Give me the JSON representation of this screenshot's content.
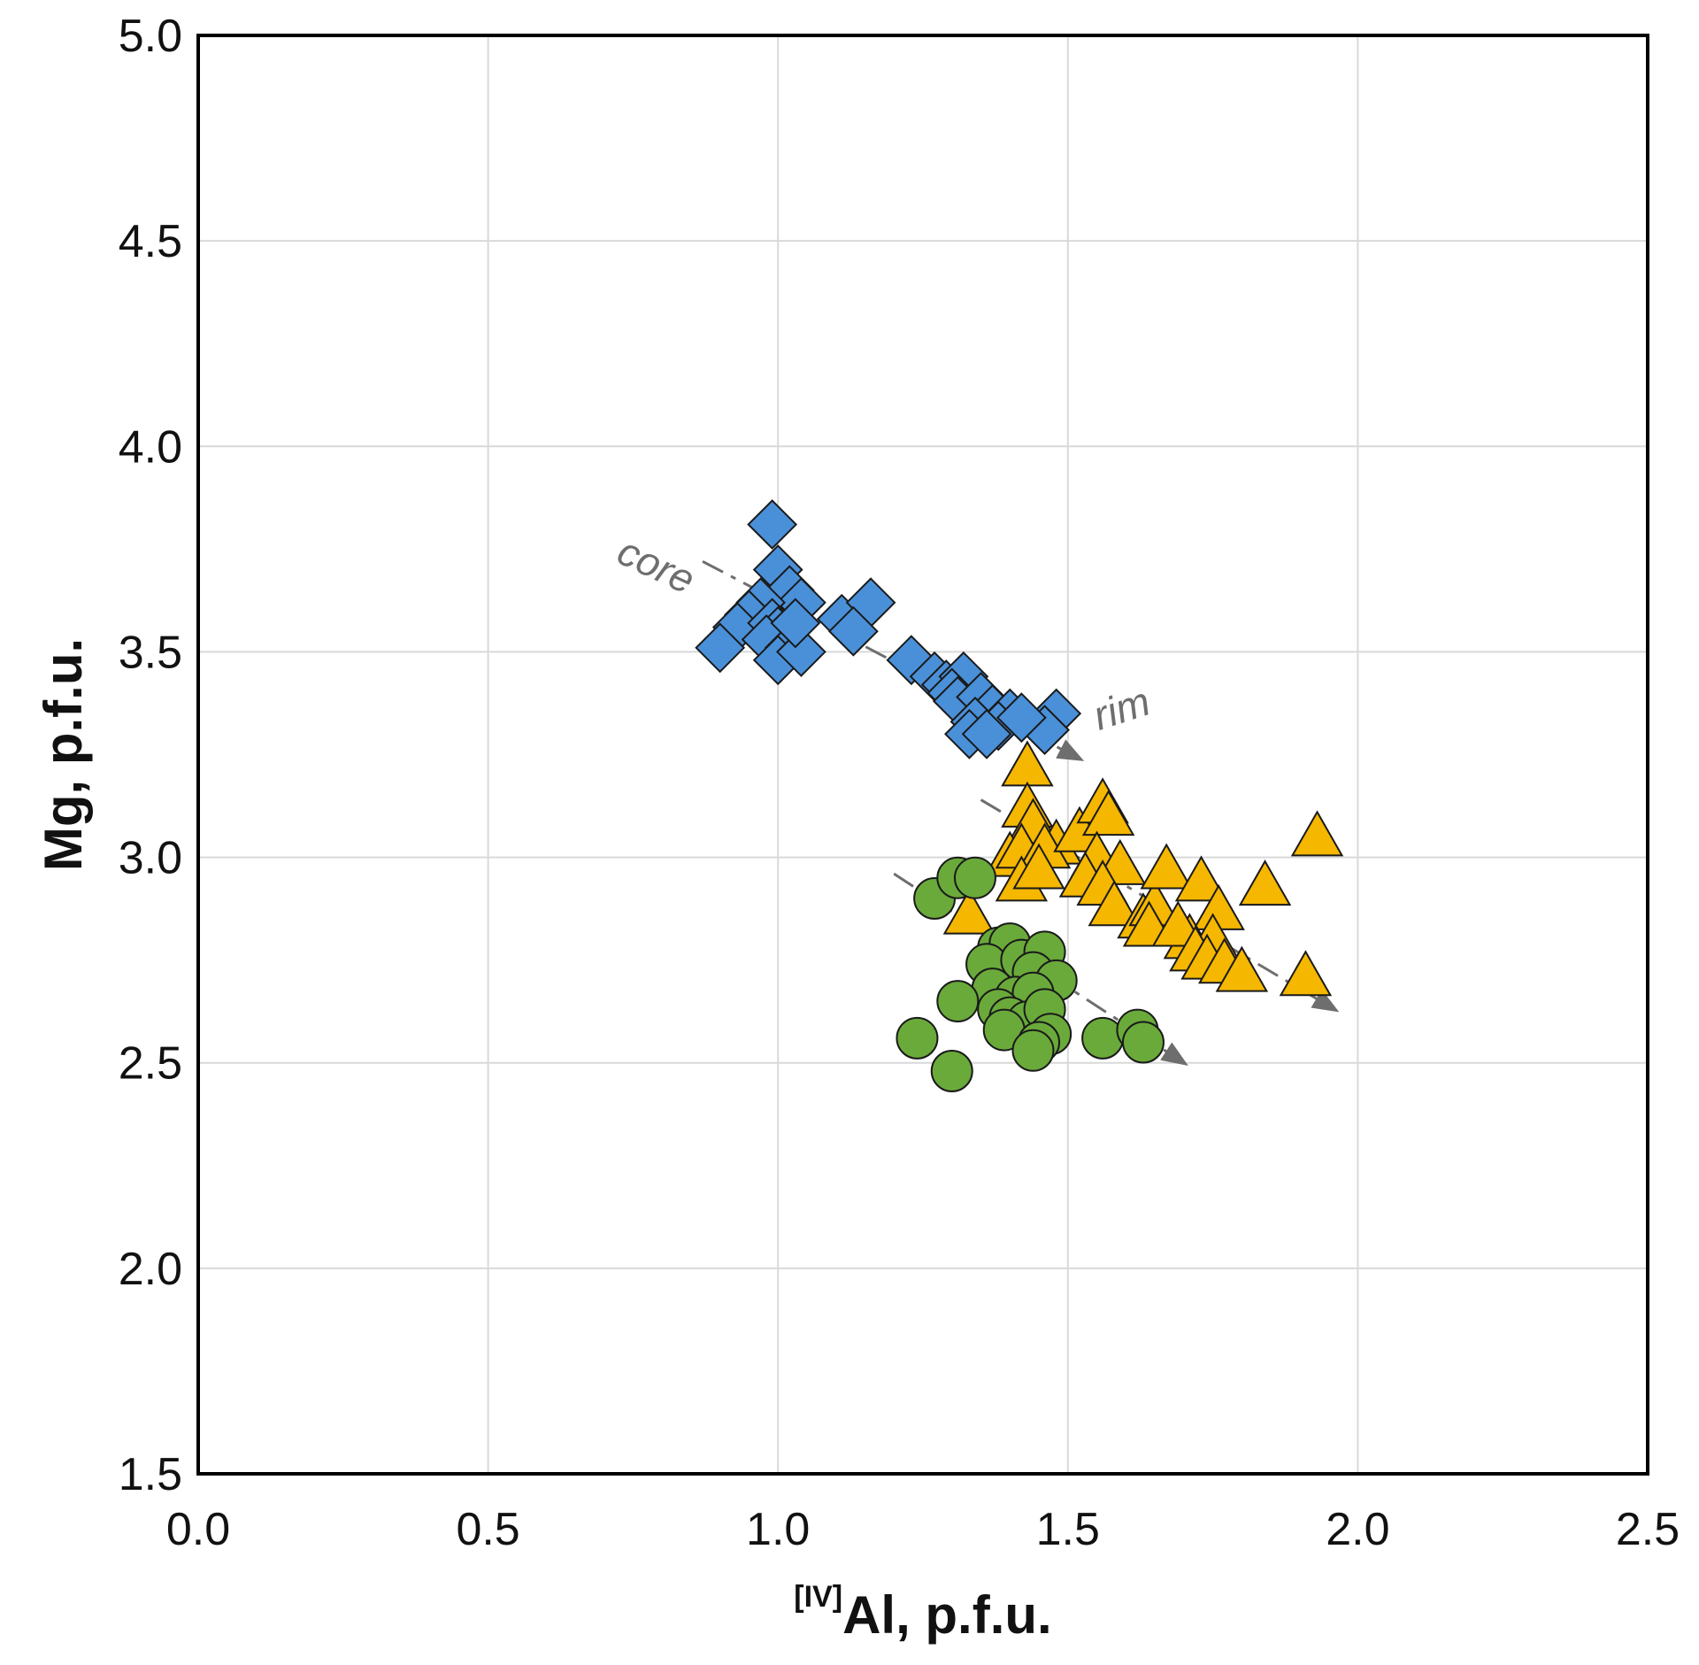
{
  "chart_data": {
    "type": "scatter",
    "title": "",
    "xlabel": {
      "superscript": "[IV]",
      "main": "Al, p.f.u."
    },
    "ylabel": "Mg, p.f.u.",
    "xlim": [
      0.0,
      2.5
    ],
    "ylim": [
      1.5,
      5.0
    ],
    "x_ticks": [
      "0.0",
      "0.5",
      "1.0",
      "1.5",
      "2.0",
      "2.5"
    ],
    "y_ticks": [
      "1.5",
      "2.0",
      "2.5",
      "3.0",
      "3.5",
      "4.0",
      "4.5",
      "5.0"
    ],
    "grid": true,
    "legend": "none",
    "annotations": [
      {
        "text": "core",
        "x": 0.78,
        "y": 3.68,
        "rotation": 25
      },
      {
        "text": "rim",
        "x": 1.6,
        "y": 3.33,
        "rotation": -18
      }
    ],
    "trend_arrows": [
      {
        "from": [
          0.87,
          3.72
        ],
        "to": [
          1.52,
          3.24
        ]
      },
      {
        "from": [
          1.35,
          3.14
        ],
        "to": [
          1.96,
          2.63
        ]
      },
      {
        "from": [
          1.2,
          2.96
        ],
        "to": [
          1.7,
          2.5
        ]
      }
    ],
    "series": [
      {
        "marker": "diamond",
        "color": "#4a90d9",
        "points": [
          [
            0.99,
            3.81
          ],
          [
            1.0,
            3.7
          ],
          [
            1.02,
            3.65
          ],
          [
            1.04,
            3.62
          ],
          [
            0.97,
            3.62
          ],
          [
            0.95,
            3.59
          ],
          [
            0.93,
            3.56
          ],
          [
            0.9,
            3.51
          ],
          [
            0.99,
            3.57
          ],
          [
            1.0,
            3.55
          ],
          [
            0.98,
            3.53
          ],
          [
            1.02,
            3.51
          ],
          [
            1.0,
            3.48
          ],
          [
            1.04,
            3.5
          ],
          [
            1.03,
            3.57
          ],
          [
            1.11,
            3.58
          ],
          [
            1.16,
            3.62
          ],
          [
            1.13,
            3.55
          ],
          [
            1.23,
            3.48
          ],
          [
            1.27,
            3.44
          ],
          [
            1.29,
            3.42
          ],
          [
            1.32,
            3.44
          ],
          [
            1.3,
            3.4
          ],
          [
            1.31,
            3.38
          ],
          [
            1.35,
            3.39
          ],
          [
            1.37,
            3.36
          ],
          [
            1.34,
            3.33
          ],
          [
            1.4,
            3.35
          ],
          [
            1.38,
            3.32
          ],
          [
            1.33,
            3.3
          ],
          [
            1.48,
            3.35
          ],
          [
            1.46,
            3.31
          ],
          [
            1.42,
            3.34
          ],
          [
            1.36,
            3.3
          ]
        ]
      },
      {
        "marker": "triangle",
        "color": "#f5b700",
        "points": [
          [
            1.43,
            3.22
          ],
          [
            1.43,
            3.12
          ],
          [
            1.44,
            3.08
          ],
          [
            1.48,
            3.03
          ],
          [
            1.4,
            3.0
          ],
          [
            1.42,
            3.02
          ],
          [
            1.46,
            3.02
          ],
          [
            1.42,
            2.94
          ],
          [
            1.45,
            2.97
          ],
          [
            1.52,
            3.06
          ],
          [
            1.56,
            3.13
          ],
          [
            1.57,
            3.1
          ],
          [
            1.55,
            3.0
          ],
          [
            1.59,
            2.98
          ],
          [
            1.53,
            2.95
          ],
          [
            1.56,
            2.93
          ],
          [
            1.58,
            2.88
          ],
          [
            1.63,
            2.85
          ],
          [
            1.65,
            2.88
          ],
          [
            1.64,
            2.83
          ],
          [
            1.67,
            2.97
          ],
          [
            1.73,
            2.94
          ],
          [
            1.76,
            2.87
          ],
          [
            1.71,
            2.8
          ],
          [
            1.69,
            2.83
          ],
          [
            1.75,
            2.8
          ],
          [
            1.72,
            2.77
          ],
          [
            1.74,
            2.75
          ],
          [
            1.77,
            2.74
          ],
          [
            1.8,
            2.72
          ],
          [
            1.84,
            2.93
          ],
          [
            1.93,
            3.05
          ],
          [
            1.91,
            2.71
          ],
          [
            1.33,
            2.86
          ]
        ]
      },
      {
        "marker": "circle",
        "color": "#6aaa3a",
        "points": [
          [
            1.27,
            2.9
          ],
          [
            1.31,
            2.95
          ],
          [
            1.34,
            2.95
          ],
          [
            1.38,
            2.78
          ],
          [
            1.4,
            2.79
          ],
          [
            1.36,
            2.74
          ],
          [
            1.42,
            2.75
          ],
          [
            1.46,
            2.77
          ],
          [
            1.44,
            2.72
          ],
          [
            1.48,
            2.7
          ],
          [
            1.37,
            2.68
          ],
          [
            1.41,
            2.66
          ],
          [
            1.44,
            2.67
          ],
          [
            1.38,
            2.63
          ],
          [
            1.4,
            2.61
          ],
          [
            1.43,
            2.6
          ],
          [
            1.46,
            2.63
          ],
          [
            1.39,
            2.58
          ],
          [
            1.47,
            2.57
          ],
          [
            1.45,
            2.55
          ],
          [
            1.44,
            2.53
          ],
          [
            1.31,
            2.65
          ],
          [
            1.24,
            2.56
          ],
          [
            1.3,
            2.48
          ],
          [
            1.56,
            2.56
          ],
          [
            1.62,
            2.58
          ],
          [
            1.63,
            2.55
          ]
        ]
      }
    ]
  }
}
